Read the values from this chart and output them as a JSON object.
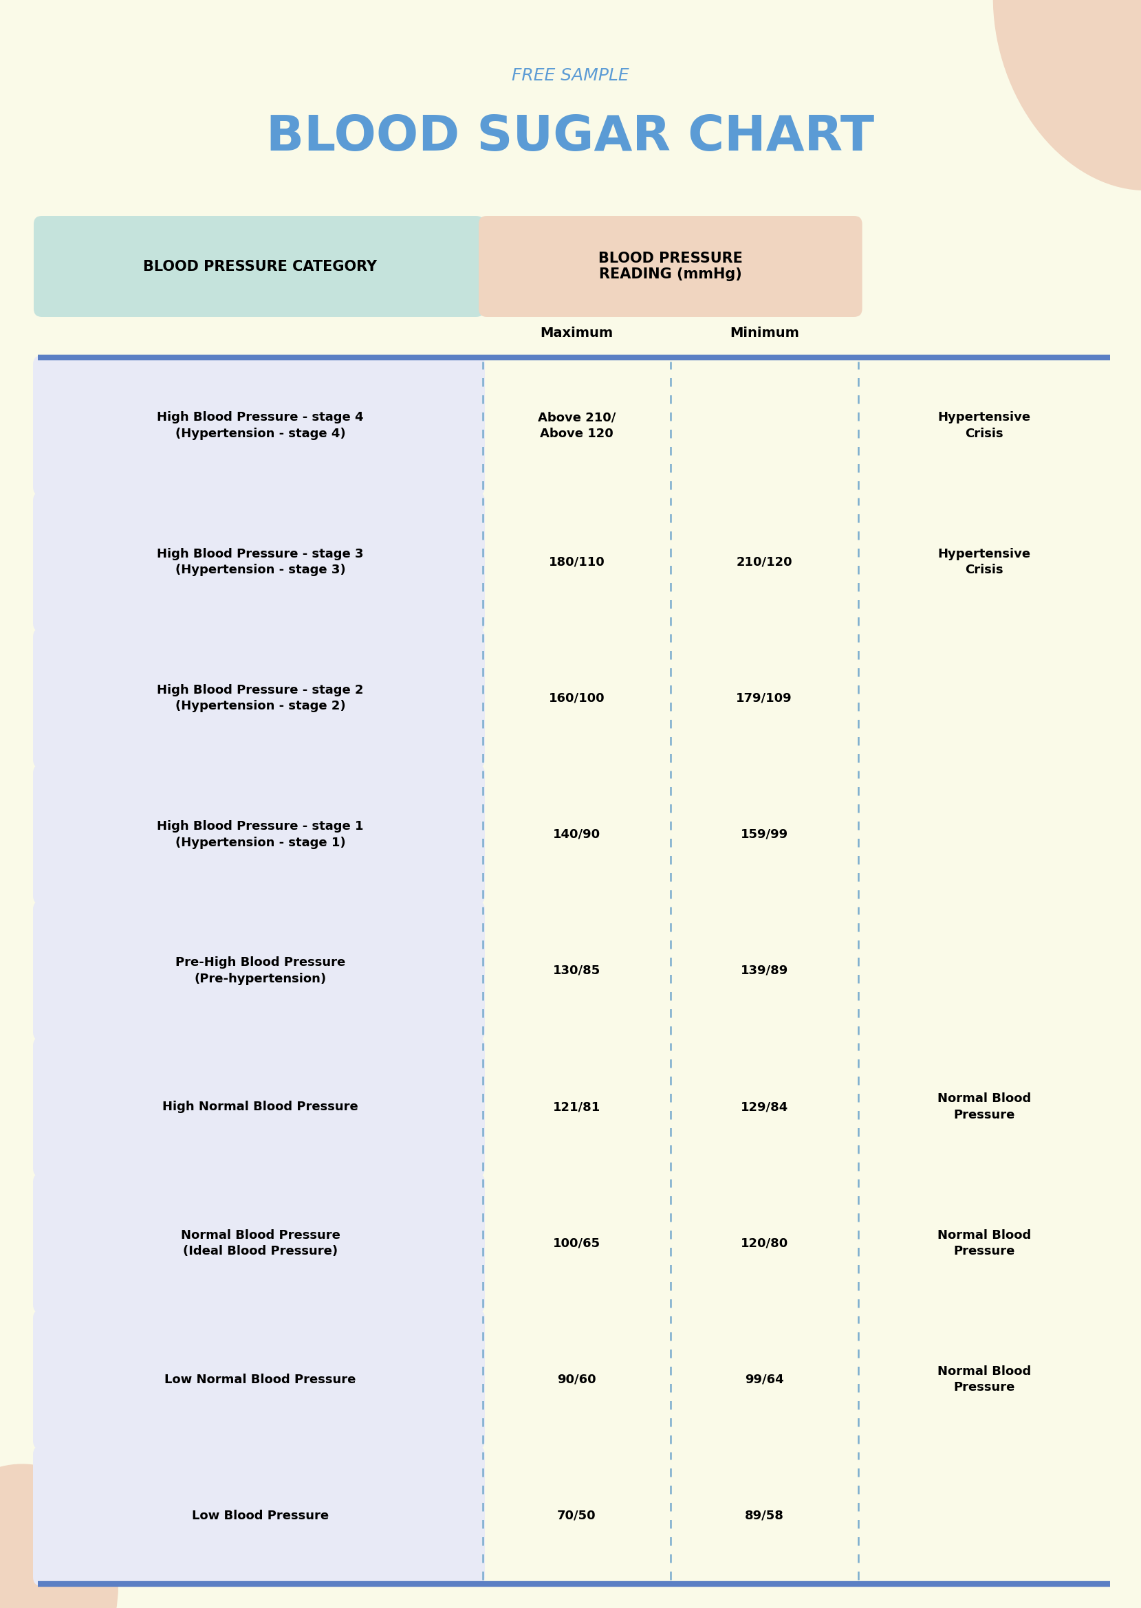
{
  "title_small": "FREE SAMPLE",
  "title_large": "BLOOD SUGAR CHART",
  "bg_color": "#FAFAE8",
  "blob_color": "#F0D5C0",
  "title_color": "#5B9BD5",
  "header_col1_bg": "#C5E3DC",
  "header_col2_bg": "#F0D5C0",
  "row_bg": "#E8EAF6",
  "divider_color": "#5B7FC4",
  "dashed_color": "#7AACCE",
  "col1_header_text": "BLOOD PRESSURE CATEGORY",
  "col2_header_text": "BLOOD PRESSURE\nREADING (mmHg)",
  "subheader_max": "Maximum",
  "subheader_min": "Minimum",
  "rows": [
    {
      "category": "High Blood Pressure - stage 4\n(Hypertension - stage 4)",
      "maximum": "Above 210/\nAbove 120",
      "minimum": "",
      "note": "Hypertensive\nCrisis"
    },
    {
      "category": "High Blood Pressure - stage 3\n(Hypertension - stage 3)",
      "maximum": "180/110",
      "minimum": "210/120",
      "note": "Hypertensive\nCrisis"
    },
    {
      "category": "High Blood Pressure - stage 2\n(Hypertension - stage 2)",
      "maximum": "160/100",
      "minimum": "179/109",
      "note": ""
    },
    {
      "category": "High Blood Pressure - stage 1\n(Hypertension - stage 1)",
      "maximum": "140/90",
      "minimum": "159/99",
      "note": ""
    },
    {
      "category": "Pre-High Blood Pressure\n(Pre-hypertension)",
      "maximum": "130/85",
      "minimum": "139/89",
      "note": ""
    },
    {
      "category": "High Normal Blood Pressure",
      "maximum": "121/81",
      "minimum": "129/84",
      "note": "Normal Blood\nPressure"
    },
    {
      "category": "Normal Blood Pressure\n(Ideal Blood Pressure)",
      "maximum": "100/65",
      "minimum": "120/80",
      "note": "Normal Blood\nPressure"
    },
    {
      "category": "Low Normal Blood Pressure",
      "maximum": "90/60",
      "minimum": "99/64",
      "note": "Normal Blood\nPressure"
    },
    {
      "category": "Low Blood Pressure",
      "maximum": "70/50",
      "minimum": "89/58",
      "note": ""
    }
  ]
}
